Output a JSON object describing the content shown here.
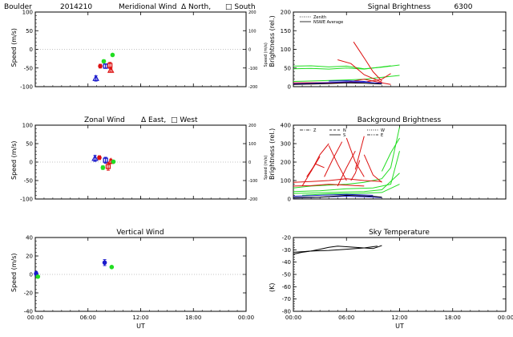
{
  "chart_data": [
    {
      "id": "meridional",
      "type": "scatter",
      "title_parts": [
        "Boulder",
        "2014210",
        "Meridional Wind",
        "Δ North,",
        "□ South"
      ],
      "xlabel": "",
      "ylabel": "Speed (m/s)",
      "ylabel_right": "Speed (m/s)",
      "xlim": [
        0,
        24
      ],
      "ylim": [
        -100,
        100
      ],
      "y_ticks": [
        "-100",
        "-50",
        "0",
        "50",
        "100"
      ],
      "y_ticks_right": [
        "-200",
        "-100",
        "0",
        "100",
        "200"
      ],
      "x_ticks": [
        "",
        "",
        "",
        "",
        ""
      ],
      "colors": {
        "blue": "#1a1acc",
        "red": "#dd1111",
        "green": "#22dd22"
      },
      "points": [
        {
          "x": 6.9,
          "y": -78,
          "err": 7,
          "color": "blue",
          "marker": "triangle"
        },
        {
          "x": 7.4,
          "y": -45,
          "err": 5,
          "color": "red",
          "marker": "circle"
        },
        {
          "x": 7.8,
          "y": -32,
          "err": 4,
          "color": "green",
          "marker": "circle"
        },
        {
          "x": 8.0,
          "y": -45,
          "err": 6,
          "color": "blue",
          "marker": "square"
        },
        {
          "x": 8.5,
          "y": -43,
          "err": 8,
          "color": "red",
          "marker": "square"
        },
        {
          "x": 8.6,
          "y": -56,
          "err": 5,
          "color": "red",
          "marker": "triangle"
        },
        {
          "x": 8.8,
          "y": -15,
          "err": 3,
          "color": "green",
          "marker": "circle"
        }
      ]
    },
    {
      "id": "signal",
      "type": "line",
      "title_parts": [
        "Signal Brightness",
        "6300"
      ],
      "xlabel": "",
      "ylabel": "Brightness (rel.)",
      "xlim": [
        0,
        24
      ],
      "ylim": [
        0,
        200
      ],
      "y_ticks": [
        "0",
        "50",
        "100",
        "150",
        "200"
      ],
      "x_ticks": [
        "",
        "",
        "",
        "",
        ""
      ],
      "legend_items": [
        {
          "label": "Zenith",
          "style": "dotted"
        },
        {
          "label": "NSWE Average",
          "style": "solid"
        }
      ],
      "series": [
        {
          "color": "green",
          "x": [
            0,
            2,
            4,
            6,
            8,
            10,
            12
          ],
          "y": [
            55,
            56,
            53,
            55,
            48,
            52,
            58
          ]
        },
        {
          "color": "green",
          "x": [
            0,
            2,
            4,
            6,
            8,
            10,
            11
          ],
          "y": [
            48,
            49,
            47,
            50,
            47,
            53,
            56
          ]
        },
        {
          "color": "green",
          "x": [
            0,
            3,
            6,
            8,
            10,
            12
          ],
          "y": [
            14,
            16,
            18,
            20,
            25,
            30
          ]
        },
        {
          "color": "red",
          "x": [
            6.8,
            7.5,
            8.2,
            9,
            10
          ],
          "y": [
            120,
            95,
            70,
            40,
            15
          ]
        },
        {
          "color": "red",
          "x": [
            5,
            6.5,
            8,
            10
          ],
          "y": [
            72,
            62,
            32,
            12
          ]
        },
        {
          "color": "red",
          "x": [
            0,
            2,
            4,
            6,
            8,
            10,
            11
          ],
          "y": [
            7,
            8,
            9,
            12,
            20,
            10,
            6
          ]
        },
        {
          "color": "red",
          "x": [
            0,
            4,
            8,
            10,
            11
          ],
          "y": [
            10,
            11,
            12,
            20,
            35
          ]
        },
        {
          "color": "blue",
          "x": [
            0,
            2,
            4,
            6,
            8,
            10
          ],
          "y": [
            8,
            9,
            11,
            13,
            12,
            9
          ]
        },
        {
          "color": "blue",
          "x": [
            4,
            6,
            8,
            9
          ],
          "y": [
            15,
            16,
            14,
            10
          ]
        },
        {
          "color": "black",
          "x": [
            0,
            2,
            4,
            6,
            8,
            10
          ],
          "y": [
            6,
            7,
            8,
            10,
            9,
            7
          ]
        }
      ]
    },
    {
      "id": "zonal",
      "type": "scatter",
      "title_parts": [
        "Zonal Wind",
        "Δ East,",
        "□ West"
      ],
      "xlabel": "",
      "ylabel": "Speed (m/s)",
      "ylabel_right": "Speed (m/s)",
      "xlim": [
        0,
        24
      ],
      "ylim": [
        -100,
        100
      ],
      "y_ticks": [
        "-100",
        "-50",
        "0",
        "50",
        "100"
      ],
      "y_ticks_right": [
        "-200",
        "-100",
        "0",
        "100",
        "200"
      ],
      "x_ticks": [
        "",
        "",
        "",
        "",
        ""
      ],
      "points": [
        {
          "x": 6.8,
          "y": 10,
          "err": 8,
          "color": "blue",
          "marker": "triangle"
        },
        {
          "x": 7.3,
          "y": 12,
          "err": 5,
          "color": "red",
          "marker": "circle"
        },
        {
          "x": 7.7,
          "y": -15,
          "err": 5,
          "color": "green",
          "marker": "circle"
        },
        {
          "x": 8.0,
          "y": 5,
          "err": 8,
          "color": "blue",
          "marker": "square"
        },
        {
          "x": 8.3,
          "y": -12,
          "err": 10,
          "color": "red",
          "marker": "square"
        },
        {
          "x": 8.6,
          "y": 2,
          "err": 6,
          "color": "red",
          "marker": "triangle"
        },
        {
          "x": 8.9,
          "y": 1,
          "err": 3,
          "color": "green",
          "marker": "circle"
        }
      ]
    },
    {
      "id": "background",
      "type": "line",
      "title_parts": [
        "Background Brightness"
      ],
      "xlabel": "",
      "ylabel": "Brightness (rel.)",
      "xlim": [
        0,
        24
      ],
      "ylim": [
        0,
        400
      ],
      "y_ticks": [
        "0",
        "100",
        "200",
        "300",
        "400"
      ],
      "x_ticks": [
        "",
        "",
        "",
        "",
        ""
      ],
      "legend_items": [
        {
          "label": "Z",
          "style": "dashdot"
        },
        {
          "label": "N",
          "style": "dashed"
        },
        {
          "label": "S",
          "style": "solid"
        },
        {
          "label": "W",
          "style": "dotted"
        },
        {
          "label": "E",
          "style": "dash3dot"
        }
      ],
      "series": [
        {
          "color": "green",
          "x": [
            0,
            2,
            4,
            6,
            8,
            10,
            11,
            12
          ],
          "y": [
            60,
            70,
            75,
            80,
            90,
            110,
            170,
            390
          ]
        },
        {
          "color": "green",
          "x": [
            0,
            3,
            6,
            9,
            11,
            12
          ],
          "y": [
            40,
            45,
            55,
            60,
            80,
            260
          ]
        },
        {
          "color": "green",
          "x": [
            0,
            4,
            8,
            10,
            12
          ],
          "y": [
            30,
            35,
            40,
            50,
            140
          ]
        },
        {
          "color": "green",
          "x": [
            1,
            4,
            7,
            10,
            12
          ],
          "y": [
            20,
            28,
            30,
            35,
            80
          ]
        },
        {
          "color": "green",
          "x": [
            10,
            11,
            12
          ],
          "y": [
            150,
            250,
            330
          ]
        },
        {
          "color": "red",
          "x": [
            0,
            2,
            4,
            6,
            8,
            10
          ],
          "y": [
            90,
            95,
            100,
            110,
            100,
            95
          ]
        },
        {
          "color": "red",
          "x": [
            0,
            2,
            4,
            6,
            8
          ],
          "y": [
            70,
            72,
            80,
            75,
            70
          ]
        },
        {
          "color": "red",
          "x": [
            1,
            2,
            3
          ],
          "y": [
            70,
            150,
            230
          ]
        },
        {
          "color": "red",
          "x": [
            2,
            3,
            4
          ],
          "y": [
            150,
            240,
            300
          ]
        },
        {
          "color": "red",
          "x": [
            3.5,
            4.5,
            5.5
          ],
          "y": [
            120,
            220,
            310
          ]
        },
        {
          "color": "red",
          "x": [
            5,
            6,
            7
          ],
          "y": [
            70,
            170,
            260
          ]
        },
        {
          "color": "red",
          "x": [
            6,
            7,
            8
          ],
          "y": [
            330,
            200,
            120
          ]
        },
        {
          "color": "red",
          "x": [
            7,
            7.5,
            8
          ],
          "y": [
            160,
            250,
            340
          ]
        },
        {
          "color": "red",
          "x": [
            8,
            9,
            10
          ],
          "y": [
            240,
            130,
            90
          ]
        },
        {
          "color": "red",
          "x": [
            4,
            5,
            6
          ],
          "y": [
            290,
            190,
            100
          ]
        },
        {
          "color": "red",
          "x": [
            6.5,
            7,
            7.5
          ],
          "y": [
            100,
            140,
            210
          ]
        },
        {
          "color": "red",
          "x": [
            1.5,
            2.5,
            3.5
          ],
          "y": [
            120,
            190,
            170
          ]
        },
        {
          "color": "blue",
          "x": [
            0,
            2,
            4,
            6,
            8,
            10
          ],
          "y": [
            5,
            8,
            12,
            15,
            12,
            8
          ]
        },
        {
          "color": "blue",
          "x": [
            0,
            3,
            6,
            9
          ],
          "y": [
            15,
            20,
            25,
            20
          ]
        },
        {
          "color": "black",
          "x": [
            0,
            3,
            6,
            9,
            10
          ],
          "y": [
            8,
            10,
            20,
            15,
            10
          ]
        }
      ]
    },
    {
      "id": "vertical",
      "type": "scatter",
      "title_parts": [
        "Vertical Wind"
      ],
      "xlabel": "UT",
      "ylabel": "Speed (m/s)",
      "xlim": [
        0,
        24
      ],
      "ylim": [
        -50,
        50
      ],
      "y_ticks": [
        "-40",
        "-20",
        "0",
        "20",
        "40"
      ],
      "x_ticks": [
        "00:00",
        "06:00",
        "12:00",
        "18:00",
        "00:00"
      ],
      "points": [
        {
          "x": 0.1,
          "y": 1,
          "err": 3,
          "color": "blue",
          "marker": "circle"
        },
        {
          "x": 0.3,
          "y": -3,
          "err": 0,
          "color": "green",
          "marker": "circle"
        },
        {
          "x": 7.9,
          "y": 16,
          "err": 4,
          "color": "blue",
          "marker": "circle"
        },
        {
          "x": 8.7,
          "y": 10,
          "err": 0,
          "color": "green",
          "marker": "circle"
        }
      ]
    },
    {
      "id": "skytemp",
      "type": "line",
      "title_parts": [
        "Sky Temperature"
      ],
      "xlabel": "UT",
      "ylabel": "(K)",
      "xlim": [
        0,
        24
      ],
      "ylim": [
        -80,
        -20
      ],
      "y_ticks": [
        "-80",
        "-70",
        "-60",
        "-50",
        "-40",
        "-30",
        "-20"
      ],
      "x_ticks": [
        "00:00",
        "06:00",
        "12:00",
        "18:00",
        "00:00"
      ],
      "series": [
        {
          "color": "black",
          "x": [
            0,
            1,
            2,
            3,
            4,
            5,
            6,
            7,
            8,
            9,
            10
          ],
          "y": [
            -33.5,
            -32,
            -31,
            -29.5,
            -28,
            -27,
            -27.5,
            -28,
            -28.5,
            -29,
            -26.5
          ]
        },
        {
          "color": "black",
          "x": [
            0,
            2,
            4,
            6,
            8,
            9.5
          ],
          "y": [
            -32,
            -31,
            -30.5,
            -29.5,
            -28.5,
            -27
          ]
        }
      ]
    }
  ]
}
